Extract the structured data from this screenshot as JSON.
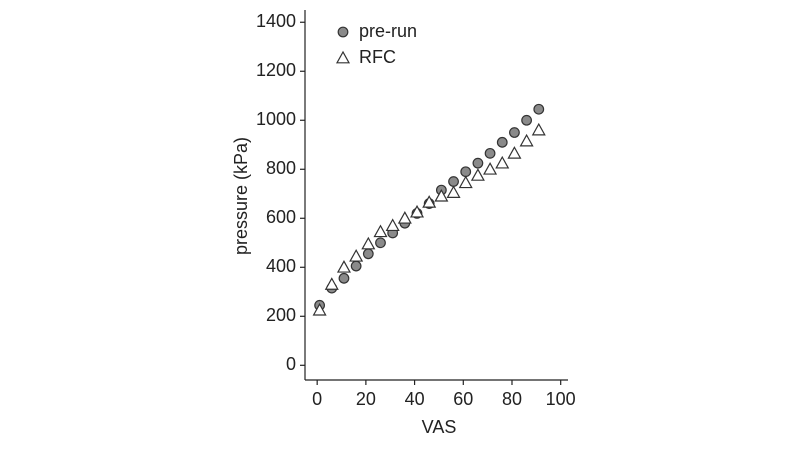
{
  "chart_data": {
    "type": "scatter",
    "x_label": "VAS",
    "y_label": "pressure (kPa)",
    "x": [
      1,
      6,
      11,
      16,
      21,
      26,
      31,
      36,
      41,
      46,
      51,
      56,
      61,
      66,
      71,
      76,
      81,
      86,
      91
    ],
    "series": [
      {
        "name": "pre-run",
        "marker": "circle",
        "color": "#8a8a8a",
        "values": [
          245,
          315,
          355,
          405,
          455,
          500,
          540,
          580,
          620,
          660,
          715,
          750,
          790,
          825,
          865,
          910,
          950,
          1000,
          1045
        ]
      },
      {
        "name": "RFC",
        "marker": "triangle",
        "color": "#ffffff",
        "values": [
          225,
          330,
          400,
          445,
          495,
          545,
          570,
          600,
          625,
          665,
          690,
          705,
          745,
          775,
          800,
          825,
          865,
          915,
          960
        ]
      }
    ],
    "xlim": [
      -5,
      103
    ],
    "xticks": [
      0,
      20,
      40,
      60,
      80,
      100
    ],
    "ylim": [
      -60,
      1450
    ],
    "yticks": [
      0,
      200,
      400,
      600,
      800,
      1000,
      1200,
      1400
    ],
    "grid": false,
    "legend": "upper left"
  }
}
